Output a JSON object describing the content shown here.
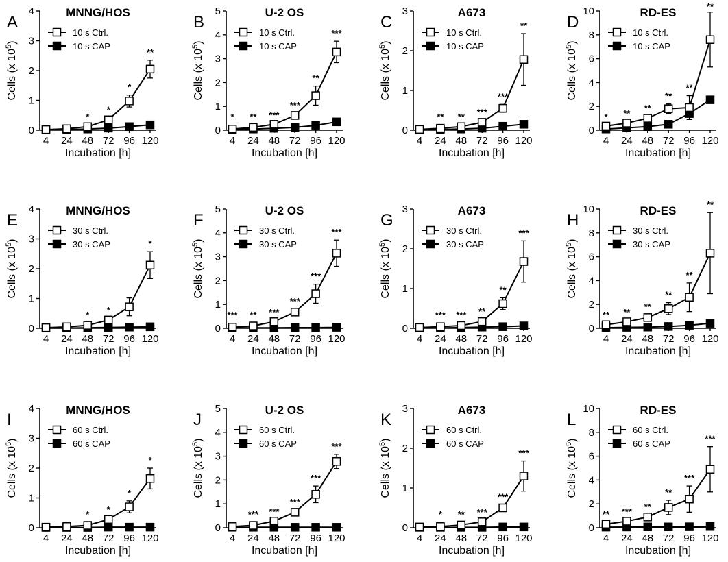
{
  "chart_data": [
    {
      "panel": "A",
      "title": "MNNG/HOS",
      "type": "line",
      "x": [
        4,
        24,
        48,
        72,
        96,
        120
      ],
      "xlabel": "Incubation [h]",
      "ylabel": "Cells (x 10^5)",
      "ylim": [
        0,
        4
      ],
      "yticks": [
        0,
        1,
        2,
        3,
        4
      ],
      "series": [
        {
          "name": "10 s Ctrl.",
          "marker": "open-square",
          "values": [
            0.02,
            0.05,
            0.12,
            0.35,
            0.98,
            2.05
          ],
          "errors": [
            0.01,
            0.02,
            0.04,
            0.08,
            0.2,
            0.3
          ]
        },
        {
          "name": "10 s CAP",
          "marker": "filled-square",
          "values": [
            0.01,
            0.02,
            0.04,
            0.07,
            0.12,
            0.18
          ],
          "errors": [
            0,
            0,
            0.01,
            0.01,
            0.02,
            0.03
          ]
        }
      ],
      "significance": [
        "",
        "",
        "*",
        "*",
        "*",
        "**"
      ]
    },
    {
      "panel": "B",
      "title": "U-2 OS",
      "type": "line",
      "x": [
        4,
        24,
        48,
        72,
        96,
        120
      ],
      "xlabel": "Incubation [h]",
      "ylabel": "Cells (x 10^5)",
      "ylim": [
        0,
        5
      ],
      "yticks": [
        0,
        1,
        2,
        3,
        4,
        5
      ],
      "series": [
        {
          "name": "10 s Ctrl.",
          "marker": "open-square",
          "values": [
            0.05,
            0.12,
            0.25,
            0.62,
            1.45,
            3.28
          ],
          "errors": [
            0.02,
            0.03,
            0.05,
            0.1,
            0.4,
            0.45
          ]
        },
        {
          "name": "10 s CAP",
          "marker": "filled-square",
          "values": [
            0.03,
            0.05,
            0.08,
            0.12,
            0.2,
            0.35
          ],
          "errors": [
            0.01,
            0.01,
            0.01,
            0.02,
            0.03,
            0.05
          ]
        }
      ],
      "significance": [
        "*",
        "**",
        "***",
        "***",
        "**",
        "***"
      ]
    },
    {
      "panel": "C",
      "title": "A673",
      "type": "line",
      "x": [
        4,
        24,
        48,
        72,
        96,
        120
      ],
      "xlabel": "Incubation [h]",
      "ylabel": "Cells (x 10^5)",
      "ylim": [
        0,
        3
      ],
      "yticks": [
        0,
        1,
        2,
        3
      ],
      "series": [
        {
          "name": "10 s Ctrl.",
          "marker": "open-square",
          "values": [
            0.02,
            0.05,
            0.09,
            0.2,
            0.55,
            1.78
          ],
          "errors": [
            0.01,
            0.02,
            0.03,
            0.05,
            0.1,
            0.65
          ]
        },
        {
          "name": "10 s CAP",
          "marker": "filled-square",
          "values": [
            0.01,
            0.02,
            0.03,
            0.05,
            0.1,
            0.15
          ],
          "errors": [
            0,
            0,
            0.01,
            0.01,
            0.02,
            0.02
          ]
        }
      ],
      "significance": [
        "",
        "**",
        "**",
        "***",
        "***",
        "**"
      ]
    },
    {
      "panel": "D",
      "title": "RD-ES",
      "type": "line",
      "x": [
        4,
        24,
        48,
        72,
        96,
        120
      ],
      "xlabel": "Incubation [h]",
      "ylabel": "Cells (x 10^5)",
      "ylim": [
        0,
        10
      ],
      "yticks": [
        0,
        2,
        4,
        6,
        8,
        10
      ],
      "series": [
        {
          "name": "10 s Ctrl.",
          "marker": "open-square",
          "values": [
            0.35,
            0.6,
            1.0,
            1.8,
            1.9,
            7.6
          ],
          "errors": [
            0.1,
            0.15,
            0.2,
            0.4,
            1.0,
            2.3
          ]
        },
        {
          "name": "10 s CAP",
          "marker": "filled-square",
          "values": [
            0.1,
            0.2,
            0.3,
            0.5,
            1.4,
            2.55
          ],
          "errors": [
            0.02,
            0.03,
            0.05,
            0.08,
            0.1,
            0.15
          ]
        }
      ],
      "significance": [
        "*",
        "**",
        "**",
        "**",
        "**",
        "**"
      ]
    },
    {
      "panel": "E",
      "title": "MNNG/HOS",
      "type": "line",
      "x": [
        4,
        24,
        48,
        72,
        96,
        120
      ],
      "xlabel": "Incubation [h]",
      "ylabel": "Cells (x 10^5)",
      "ylim": [
        0,
        4
      ],
      "yticks": [
        0,
        1,
        2,
        3,
        4
      ],
      "series": [
        {
          "name": "30 s Ctrl.",
          "marker": "open-square",
          "values": [
            0.02,
            0.05,
            0.1,
            0.28,
            0.72,
            2.12
          ],
          "errors": [
            0.01,
            0.02,
            0.04,
            0.06,
            0.3,
            0.45
          ]
        },
        {
          "name": "30 s CAP",
          "marker": "filled-square",
          "values": [
            0.01,
            0.01,
            0.02,
            0.03,
            0.04,
            0.05
          ],
          "errors": [
            0,
            0,
            0,
            0.01,
            0.01,
            0.01
          ]
        }
      ],
      "significance": [
        "",
        "",
        "*",
        "*",
        "",
        "*"
      ]
    },
    {
      "panel": "F",
      "title": "U-2 OS",
      "type": "line",
      "x": [
        4,
        24,
        48,
        72,
        96,
        120
      ],
      "xlabel": "Incubation [h]",
      "ylabel": "Cells (x 10^5)",
      "ylim": [
        0,
        5
      ],
      "yticks": [
        0,
        1,
        2,
        3,
        4,
        5
      ],
      "series": [
        {
          "name": "30 s Ctrl.",
          "marker": "open-square",
          "values": [
            0.05,
            0.1,
            0.28,
            0.68,
            1.45,
            3.15
          ],
          "errors": [
            0.02,
            0.03,
            0.06,
            0.12,
            0.4,
            0.55
          ]
        },
        {
          "name": "30 s CAP",
          "marker": "filled-square",
          "values": [
            0.02,
            0.02,
            0.02,
            0.03,
            0.03,
            0.04
          ],
          "errors": [
            0,
            0,
            0,
            0,
            0.01,
            0.01
          ]
        }
      ],
      "significance": [
        "***",
        "**",
        "***",
        "***",
        "***",
        "***"
      ]
    },
    {
      "panel": "G",
      "title": "A673",
      "type": "line",
      "x": [
        4,
        24,
        48,
        72,
        96,
        120
      ],
      "xlabel": "Incubation [h]",
      "ylabel": "Cells (x 10^5)",
      "ylim": [
        0,
        3
      ],
      "yticks": [
        0,
        1,
        2,
        3
      ],
      "series": [
        {
          "name": "30 s Ctrl.",
          "marker": "open-square",
          "values": [
            0.02,
            0.04,
            0.07,
            0.17,
            0.62,
            1.68
          ],
          "errors": [
            0.01,
            0.02,
            0.03,
            0.05,
            0.15,
            0.52
          ]
        },
        {
          "name": "30 s CAP",
          "marker": "filled-square",
          "values": [
            0.01,
            0.01,
            0.02,
            0.03,
            0.04,
            0.06
          ],
          "errors": [
            0,
            0,
            0,
            0,
            0.01,
            0.01
          ]
        }
      ],
      "significance": [
        "",
        "***",
        "***",
        "**",
        "**",
        "***"
      ]
    },
    {
      "panel": "H",
      "title": "RD-ES",
      "type": "line",
      "x": [
        4,
        24,
        48,
        72,
        96,
        120
      ],
      "xlabel": "Incubation [h]",
      "ylabel": "Cells (x 10^5)",
      "ylim": [
        0,
        10
      ],
      "yticks": [
        0,
        2,
        4,
        6,
        8,
        10
      ],
      "series": [
        {
          "name": "30 s Ctrl.",
          "marker": "open-square",
          "values": [
            0.3,
            0.55,
            0.9,
            1.65,
            2.6,
            6.3
          ],
          "errors": [
            0.1,
            0.15,
            0.25,
            0.5,
            1.2,
            3.4
          ]
        },
        {
          "name": "30 s CAP",
          "marker": "filled-square",
          "values": [
            0.05,
            0.08,
            0.1,
            0.15,
            0.25,
            0.42
          ],
          "errors": [
            0.01,
            0.01,
            0.02,
            0.03,
            0.05,
            0.06
          ]
        }
      ],
      "significance": [
        "**",
        "**",
        "**",
        "**",
        "**",
        "**"
      ]
    },
    {
      "panel": "I",
      "title": "MNNG/HOS",
      "type": "line",
      "x": [
        4,
        24,
        48,
        72,
        96,
        120
      ],
      "xlabel": "Incubation [h]",
      "ylabel": "Cells (x 10^5)",
      "ylim": [
        0,
        4
      ],
      "yticks": [
        0,
        1,
        2,
        3,
        4
      ],
      "series": [
        {
          "name": "60 s Ctrl.",
          "marker": "open-square",
          "values": [
            0.02,
            0.04,
            0.08,
            0.28,
            0.7,
            1.65
          ],
          "errors": [
            0.01,
            0.02,
            0.03,
            0.06,
            0.2,
            0.35
          ]
        },
        {
          "name": "60 s CAP",
          "marker": "filled-square",
          "values": [
            0.01,
            0.01,
            0.01,
            0.02,
            0.02,
            0.02
          ],
          "errors": [
            0,
            0,
            0,
            0,
            0,
            0
          ]
        }
      ],
      "significance": [
        "",
        "",
        "*",
        "*",
        "*",
        "*"
      ]
    },
    {
      "panel": "J",
      "title": "U-2 OS",
      "type": "line",
      "x": [
        4,
        24,
        48,
        72,
        96,
        120
      ],
      "xlabel": "Incubation [h]",
      "ylabel": "Cells (x 10^5)",
      "ylim": [
        0,
        5
      ],
      "yticks": [
        0,
        1,
        2,
        3,
        4,
        5
      ],
      "series": [
        {
          "name": "60 s Ctrl.",
          "marker": "open-square",
          "values": [
            0.05,
            0.1,
            0.28,
            0.65,
            1.4,
            2.78
          ],
          "errors": [
            0.02,
            0.03,
            0.06,
            0.1,
            0.35,
            0.3
          ]
        },
        {
          "name": "60 s CAP",
          "marker": "filled-square",
          "values": [
            0.02,
            0.02,
            0.02,
            0.02,
            0.02,
            0.02
          ],
          "errors": [
            0,
            0,
            0,
            0,
            0,
            0
          ]
        }
      ],
      "significance": [
        "",
        "***",
        "***",
        "***",
        "***",
        "***"
      ]
    },
    {
      "panel": "K",
      "title": "A673",
      "type": "line",
      "x": [
        4,
        24,
        48,
        72,
        96,
        120
      ],
      "xlabel": "Incubation [h]",
      "ylabel": "Cells (x 10^5)",
      "ylim": [
        0,
        3
      ],
      "yticks": [
        0,
        1,
        2,
        3
      ],
      "series": [
        {
          "name": "60 s Ctrl.",
          "marker": "open-square",
          "values": [
            0.02,
            0.03,
            0.07,
            0.15,
            0.5,
            1.3
          ],
          "errors": [
            0.01,
            0.01,
            0.02,
            0.04,
            0.08,
            0.38
          ]
        },
        {
          "name": "60 s CAP",
          "marker": "filled-square",
          "values": [
            0.01,
            0.01,
            0.01,
            0.01,
            0.02,
            0.02
          ],
          "errors": [
            0,
            0,
            0,
            0,
            0,
            0
          ]
        }
      ],
      "significance": [
        "",
        "*",
        "**",
        "***",
        "***",
        "***"
      ]
    },
    {
      "panel": "L",
      "title": "RD-ES",
      "type": "line",
      "x": [
        4,
        24,
        48,
        72,
        96,
        120
      ],
      "xlabel": "Incubation [h]",
      "ylabel": "Cells (x 10^5)",
      "ylim": [
        0,
        10
      ],
      "yticks": [
        0,
        2,
        4,
        6,
        8,
        10
      ],
      "series": [
        {
          "name": "60 s Ctrl.",
          "marker": "open-square",
          "values": [
            0.3,
            0.55,
            0.9,
            1.7,
            2.4,
            4.9
          ],
          "errors": [
            0.1,
            0.15,
            0.2,
            0.6,
            1.1,
            1.9
          ]
        },
        {
          "name": "60 s CAP",
          "marker": "filled-square",
          "values": [
            0.05,
            0.06,
            0.07,
            0.07,
            0.08,
            0.1
          ],
          "errors": [
            0.01,
            0.01,
            0.01,
            0.01,
            0.01,
            0.01
          ]
        }
      ],
      "significance": [
        "**",
        "***",
        "**",
        "**",
        "***",
        "***"
      ]
    }
  ]
}
